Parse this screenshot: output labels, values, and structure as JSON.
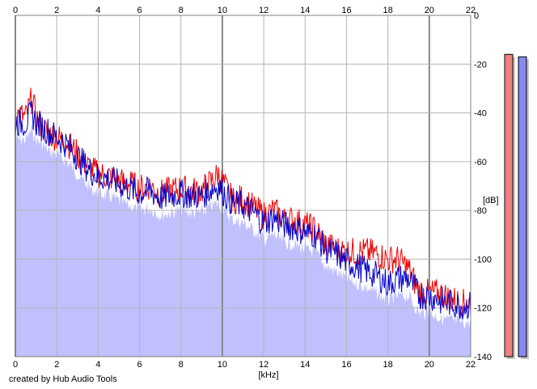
{
  "chart_data": {
    "type": "area",
    "xlabel": "[kHz]",
    "ylabel": "[dB]",
    "xlim": [
      0,
      22
    ],
    "ylim": [
      -140,
      0
    ],
    "x_ticks": [
      0,
      2,
      4,
      6,
      8,
      10,
      12,
      14,
      16,
      18,
      20,
      22
    ],
    "x_tick_labels": [
      "0",
      "2",
      "4",
      "6",
      "8",
      "10",
      "12",
      "14",
      "16",
      "18",
      "20",
      "22"
    ],
    "y_ticks": [
      0,
      -20,
      -40,
      -60,
      -80,
      -100,
      -120,
      -140
    ],
    "y_tick_labels": [
      "0",
      "-20",
      "-40",
      "-60",
      "-80",
      "-100",
      "-120",
      "-140"
    ],
    "grid": true,
    "series": [
      {
        "channel": "left",
        "color": "#ee0000",
        "x": [
          0,
          0.5,
          0.8,
          1,
          1.5,
          2,
          2.5,
          3,
          3.5,
          4,
          4.5,
          5,
          5.5,
          6,
          6.5,
          7,
          7.5,
          8,
          8.5,
          9,
          9.5,
          9.8,
          10.5,
          11,
          11.5,
          12,
          12.5,
          13,
          13.5,
          14,
          14.5,
          15,
          15.5,
          16,
          16.5,
          17,
          17.5,
          18,
          18.5,
          19,
          19.5,
          20,
          20.5,
          21,
          21.5,
          22
        ],
        "values": [
          -40,
          -42,
          -34,
          -42,
          -48,
          -50,
          -52,
          -57,
          -62,
          -65,
          -66,
          -68,
          -69,
          -71,
          -70,
          -73,
          -72,
          -71,
          -72,
          -72,
          -68,
          -65,
          -76,
          -75,
          -79,
          -82,
          -80,
          -84,
          -84,
          -86,
          -88,
          -94,
          -96,
          -97,
          -97,
          -97,
          -98,
          -100,
          -100,
          -104,
          -113,
          -114,
          -114,
          -116,
          -118,
          -118
        ]
      },
      {
        "channel": "right",
        "color": "#0000cc",
        "x": [
          0,
          0.5,
          0.8,
          1,
          1.5,
          2,
          2.5,
          3,
          3.5,
          4,
          4.5,
          5,
          5.5,
          6,
          6.5,
          7,
          7.5,
          8,
          8.5,
          9,
          9.5,
          9.8,
          10.5,
          11,
          11.5,
          12,
          12.5,
          13,
          13.5,
          14,
          14.5,
          15,
          15.5,
          16,
          16.5,
          17,
          17.5,
          18,
          18.5,
          19,
          19.5,
          20,
          20.5,
          21,
          21.5,
          22
        ],
        "values": [
          -44,
          -44,
          -40,
          -44,
          -47,
          -50,
          -53,
          -58,
          -63,
          -66,
          -67,
          -69,
          -71,
          -73,
          -72,
          -75,
          -74,
          -73,
          -74,
          -74,
          -71,
          -70,
          -77,
          -78,
          -81,
          -85,
          -83,
          -86,
          -87,
          -89,
          -90,
          -96,
          -98,
          -101,
          -103,
          -105,
          -107,
          -110,
          -108,
          -108,
          -115,
          -115,
          -117,
          -118,
          -119,
          -119
        ]
      }
    ],
    "level_meters": [
      {
        "channel": "left",
        "color": "#f08080",
        "level_db": -16
      },
      {
        "channel": "right",
        "color": "#8888ee",
        "level_db": -17
      }
    ],
    "fill_color": "#c0c0ff",
    "grid_color": "#b4b4b4",
    "major_grid_color": "#888888"
  },
  "footer": {
    "credit": "created by Hub Audio Tools"
  }
}
